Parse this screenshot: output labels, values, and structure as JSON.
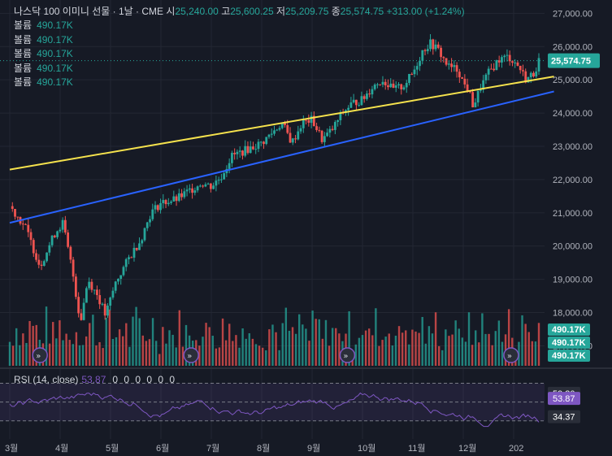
{
  "header": {
    "symbol": "나스닥 100 이미니 선물 · 1날 · CME",
    "open_label": "시",
    "open": "25,240.00",
    "high_label": "고",
    "high": "25,600.25",
    "low_label": "저",
    "low": "25,209.75",
    "close_label": "종",
    "close": "25,574.75",
    "change": "+313.00 (+1.24%)"
  },
  "volume_legend": [
    {
      "label": "볼륨",
      "value": "490.17K"
    },
    {
      "label": "볼륨",
      "value": "490.17K"
    },
    {
      "label": "볼륨",
      "value": "490.17K"
    },
    {
      "label": "볼륨",
      "value": "490.17K"
    },
    {
      "label": "볼륨",
      "value": "490.17K"
    }
  ],
  "price_axis": {
    "ticks": [
      "27,000.00",
      "26,000.00",
      "25,000.00",
      "24,000.00",
      "23,000.00",
      "22,000.00",
      "21,000.00",
      "20,000.00",
      "19,000.00",
      "18,000.00",
      "17,000.00"
    ],
    "tick_values": [
      27000,
      26000,
      25000,
      24000,
      23000,
      22000,
      21000,
      20000,
      19000,
      18000,
      17000
    ],
    "last_price_label": "25,574.75",
    "volume_labels": [
      "490.17K",
      "490.17K",
      "490.17K"
    ]
  },
  "rsi": {
    "label": "RSI (14, close)",
    "value": "53.87",
    "extra": "0 0 0 0 0 0",
    "axis_labels": [
      "59.30",
      "53.87",
      "34.37"
    ],
    "axis_label_values": [
      59.3,
      53.87,
      34.37
    ],
    "upper_band": 70,
    "lower_band": 30
  },
  "time_axis": {
    "labels": [
      "3월",
      "4월",
      "5월",
      "6월",
      "7월",
      "8월",
      "9월",
      "10월",
      "11월",
      "12월",
      "202"
    ]
  },
  "chart_data": {
    "type": "candlestick",
    "ylim": [
      16400,
      27400
    ],
    "x": [
      "3월",
      "4월",
      "5월",
      "6월",
      "7월",
      "8월",
      "9월",
      "10월",
      "11월",
      "12월"
    ],
    "close_path": [
      [
        0,
        21200
      ],
      [
        0.3,
        20600
      ],
      [
        0.6,
        19400
      ],
      [
        0.9,
        20400
      ],
      [
        1.05,
        20700
      ],
      [
        1.25,
        19200
      ],
      [
        1.4,
        17700
      ],
      [
        1.55,
        19000
      ],
      [
        1.75,
        18500
      ],
      [
        1.9,
        17900
      ],
      [
        2.1,
        18900
      ],
      [
        2.35,
        19600
      ],
      [
        2.6,
        20200
      ],
      [
        2.8,
        21000
      ],
      [
        3.0,
        21300
      ],
      [
        3.3,
        21400
      ],
      [
        3.6,
        21700
      ],
      [
        3.8,
        21900
      ],
      [
        4.0,
        21800
      ],
      [
        4.2,
        22100
      ],
      [
        4.4,
        22700
      ],
      [
        4.7,
        22900
      ],
      [
        5.0,
        23100
      ],
      [
        5.2,
        23400
      ],
      [
        5.4,
        23700
      ],
      [
        5.6,
        23100
      ],
      [
        5.8,
        23700
      ],
      [
        6.0,
        23800
      ],
      [
        6.2,
        23200
      ],
      [
        6.4,
        23500
      ],
      [
        6.6,
        24000
      ],
      [
        6.8,
        24300
      ],
      [
        7.0,
        24400
      ],
      [
        7.2,
        24800
      ],
      [
        7.4,
        25000
      ],
      [
        7.6,
        24700
      ],
      [
        7.8,
        24800
      ],
      [
        8.0,
        25200
      ],
      [
        8.2,
        25900
      ],
      [
        8.35,
        26100
      ],
      [
        8.5,
        25900
      ],
      [
        8.7,
        25400
      ],
      [
        8.9,
        25300
      ],
      [
        9.0,
        24900
      ],
      [
        9.1,
        24700
      ],
      [
        9.2,
        24200
      ],
      [
        9.35,
        24800
      ],
      [
        9.5,
        25200
      ],
      [
        9.7,
        25600
      ],
      [
        9.9,
        25700
      ],
      [
        10.1,
        25400
      ],
      [
        10.25,
        25000
      ],
      [
        10.4,
        25200
      ],
      [
        10.5,
        25574.75
      ]
    ],
    "volume_pct": [
      0.55,
      0.85,
      0.7,
      0.6,
      0.9,
      0.75,
      0.8,
      0.95,
      0.7,
      0.6
    ],
    "trendlines": [
      {
        "color": "#f5e24d",
        "from": [
          0,
          22300
        ],
        "to": [
          10.8,
          25100
        ]
      },
      {
        "color": "#2962ff",
        "from": [
          0,
          20700
        ],
        "to": [
          10.8,
          24650
        ]
      }
    ],
    "up_color": "#26a69a",
    "down_color": "#ef5350",
    "rsi_color": "#7e57c2"
  }
}
